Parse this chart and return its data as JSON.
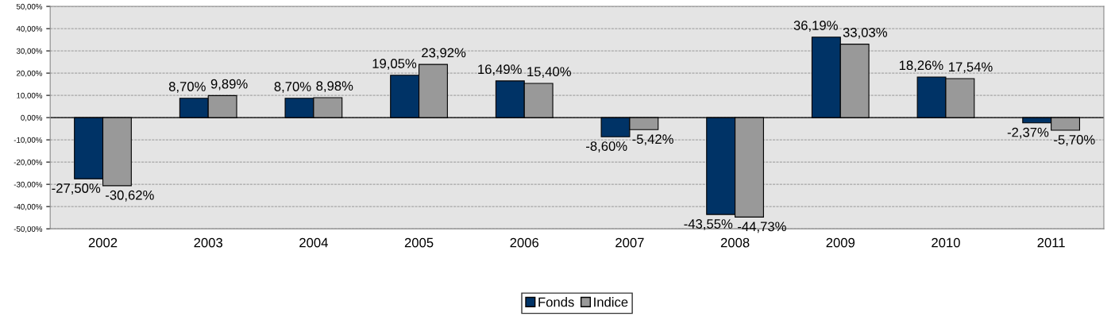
{
  "chart_data": {
    "type": "bar",
    "categories": [
      "2002",
      "2003",
      "2004",
      "2005",
      "2006",
      "2007",
      "2008",
      "2009",
      "2010",
      "2011"
    ],
    "series": [
      {
        "name": "Fonds",
        "color": "#003366",
        "values": [
          -27.5,
          8.7,
          8.7,
          19.05,
          16.49,
          -8.6,
          -43.55,
          36.19,
          18.26,
          -2.37
        ],
        "value_labels": [
          "-27,50%",
          "8,70%",
          "8,70%",
          "19,05%",
          "16,49%",
          "-8,60%",
          "-43,55%",
          "36,19%",
          "18,26%",
          "-2,37%"
        ]
      },
      {
        "name": "Indice",
        "color": "#999999",
        "values": [
          -30.62,
          9.89,
          8.98,
          23.92,
          15.4,
          -5.42,
          -44.73,
          33.03,
          17.54,
          -5.7
        ],
        "value_labels": [
          "-30,62%",
          "9,89%",
          "8,98%",
          "23,92%",
          "15,40%",
          "-5,42%",
          "-44,73%",
          "33,03%",
          "17,54%",
          "-5,70%"
        ]
      }
    ],
    "ylim": [
      -50,
      50
    ],
    "yticks": [
      {
        "value": -50,
        "label": "-50,00%"
      },
      {
        "value": -40,
        "label": "-40,00%"
      },
      {
        "value": -30,
        "label": "-30,00%"
      },
      {
        "value": -20,
        "label": "-20,00%"
      },
      {
        "value": -10,
        "label": "-10,00%"
      },
      {
        "value": 0,
        "label": "0,00%"
      },
      {
        "value": 10,
        "label": "10,00%"
      },
      {
        "value": 20,
        "label": "20,00%"
      },
      {
        "value": 30,
        "label": "30,00%"
      },
      {
        "value": 40,
        "label": "40,00%"
      },
      {
        "value": 50,
        "label": "50,00%"
      }
    ],
    "grid": "y",
    "legend": "bottom"
  }
}
